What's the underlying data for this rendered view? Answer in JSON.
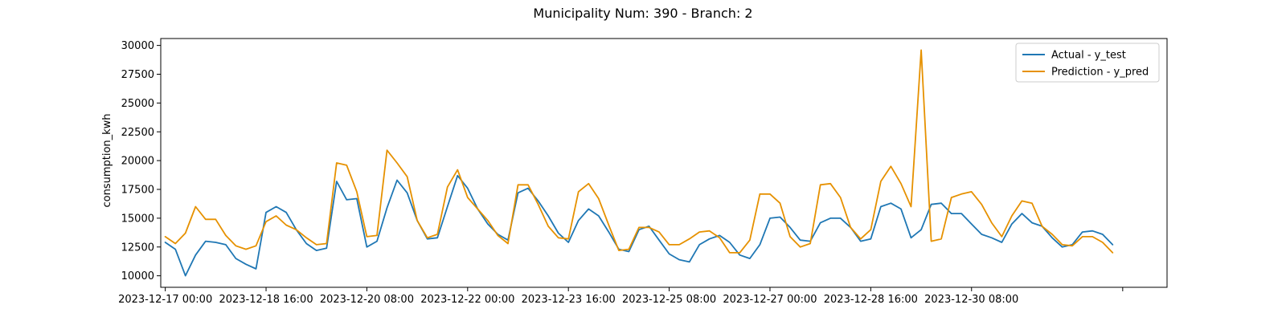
{
  "chart_data": {
    "type": "line",
    "title": "Municipality Num: 390 - Branch: 2",
    "xlabel": "",
    "ylabel": "consumption_kwh",
    "x_start": "2023-12-17 00:00",
    "x_step_hours": 4,
    "x_ticks": [
      {
        "label": "2023-12-17 00:00",
        "index": 0
      },
      {
        "label": "2023-12-18 16:00",
        "index": 10
      },
      {
        "label": "2023-12-20 08:00",
        "index": 20
      },
      {
        "label": "2023-12-22 00:00",
        "index": 30
      },
      {
        "label": "2023-12-23 16:00",
        "index": 40
      },
      {
        "label": "2023-12-25 08:00",
        "index": 50
      },
      {
        "label": "2023-12-27 00:00",
        "index": 60
      },
      {
        "label": "2023-12-28 16:00",
        "index": 70
      },
      {
        "label": "2023-12-30 08:00",
        "index": 80
      },
      {
        "label": "",
        "index": 95
      }
    ],
    "y_ticks": [
      10000,
      12500,
      15000,
      17500,
      20000,
      22500,
      25000,
      27500,
      30000
    ],
    "ylim": [
      9000,
      30600
    ],
    "xlim_index": [
      -0.45,
      99.4
    ],
    "grid": false,
    "legend_position": "upper right",
    "series": [
      {
        "name": "Actual - y_test",
        "color": "#1f77b4",
        "values": [
          12900,
          12300,
          10000,
          11800,
          13000,
          12900,
          12700,
          11500,
          11000,
          10600,
          15500,
          16000,
          15500,
          14000,
          12800,
          12200,
          12400,
          18200,
          16600,
          16700,
          12500,
          13000,
          15900,
          18300,
          17200,
          14800,
          13200,
          13300,
          16000,
          18700,
          17600,
          15800,
          14500,
          13600,
          13100,
          17200,
          17600,
          16500,
          15200,
          13700,
          12900,
          14800,
          15800,
          15200,
          13800,
          12300,
          12100,
          14000,
          14300,
          13100,
          11900,
          11400,
          11200,
          12700,
          13200,
          13500,
          12900,
          11800,
          11500,
          12700,
          15000,
          15100,
          14200,
          13100,
          13000,
          14600,
          15000,
          15000,
          14200,
          13000,
          13200,
          16000,
          16300,
          15800,
          13300,
          14000,
          16200,
          16300,
          15400,
          15400,
          14500,
          13600,
          13300,
          12900,
          14500,
          15400,
          14600,
          14300,
          13300,
          12500,
          12700,
          13800,
          13900,
          13600,
          12700
        ]
      },
      {
        "name": "Prediction - y_pred",
        "color": "#e69100",
        "values": [
          13400,
          12800,
          13700,
          16000,
          14900,
          14900,
          13500,
          12600,
          12300,
          12600,
          14700,
          15200,
          14400,
          14000,
          13300,
          12700,
          12800,
          19800,
          19600,
          17300,
          13400,
          13500,
          20900,
          19800,
          18600,
          14800,
          13300,
          13600,
          17700,
          19200,
          16800,
          15800,
          14800,
          13500,
          12800,
          17900,
          17900,
          16200,
          14300,
          13300,
          13200,
          17300,
          18000,
          16700,
          14400,
          12200,
          12300,
          14200,
          14200,
          13800,
          12700,
          12700,
          13200,
          13800,
          13900,
          13300,
          12000,
          12000,
          13100,
          17100,
          17100,
          16300,
          13400,
          12500,
          12800,
          17900,
          18000,
          16800,
          14200,
          13200,
          14000,
          18200,
          19500,
          18000,
          16000,
          29600,
          13000,
          13200,
          16800,
          17100,
          17300,
          16200,
          14600,
          13400,
          15200,
          16500,
          16300,
          14300,
          13600,
          12700,
          12600,
          13400,
          13400,
          12900,
          12000
        ]
      }
    ]
  }
}
